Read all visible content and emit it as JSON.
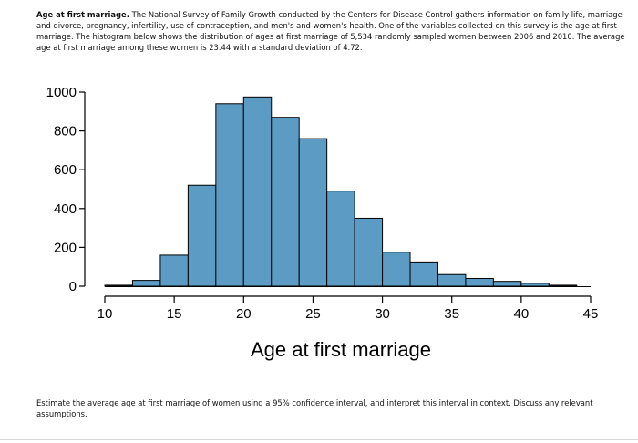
{
  "intro": {
    "lead": "Age at first marriage.",
    "body": "The National Survey of Family Growth conducted by the Centers for Disease Control gathers information on family life, marriage and divorce, pregnancy, infertility, use of contraception, and men's and women's health. One of the variables collected on this survey is the age at first marriage. The histogram below shows the distribution of ages at first marriage of 5,534 randomly sampled women between 2006 and 2010. The average age at first marriage among these women is 23.44 with a standard deviation of 4.72."
  },
  "question": "Estimate the average age at first marriage of women using a 95% confidence interval, and interpret this interval in context. Discuss any relevant assumptions.",
  "chart_data": {
    "type": "bar",
    "histogram": true,
    "xlabel": "Age at first marriage",
    "ylabel": "",
    "title": "",
    "bins": [
      {
        "from": 10,
        "to": 12,
        "count": 5
      },
      {
        "from": 12,
        "to": 14,
        "count": 30
      },
      {
        "from": 14,
        "to": 16,
        "count": 160
      },
      {
        "from": 16,
        "to": 18,
        "count": 520
      },
      {
        "from": 18,
        "to": 20,
        "count": 940
      },
      {
        "from": 20,
        "to": 22,
        "count": 975
      },
      {
        "from": 22,
        "to": 24,
        "count": 870
      },
      {
        "from": 24,
        "to": 26,
        "count": 760
      },
      {
        "from": 26,
        "to": 28,
        "count": 490
      },
      {
        "from": 28,
        "to": 30,
        "count": 350
      },
      {
        "from": 30,
        "to": 32,
        "count": 175
      },
      {
        "from": 32,
        "to": 34,
        "count": 125
      },
      {
        "from": 34,
        "to": 36,
        "count": 60
      },
      {
        "from": 36,
        "to": 38,
        "count": 40
      },
      {
        "from": 38,
        "to": 40,
        "count": 25
      },
      {
        "from": 40,
        "to": 42,
        "count": 15
      },
      {
        "from": 42,
        "to": 44,
        "count": 5
      }
    ],
    "xlim": [
      10,
      45
    ],
    "ylim": [
      0,
      1000
    ],
    "xticks": [
      "10",
      "15",
      "20",
      "25",
      "30",
      "35",
      "40",
      "45"
    ],
    "yticks": [
      "0",
      "200",
      "400",
      "600",
      "800",
      "1000"
    ],
    "bar_color": "#5b9bc4",
    "grid": false
  }
}
